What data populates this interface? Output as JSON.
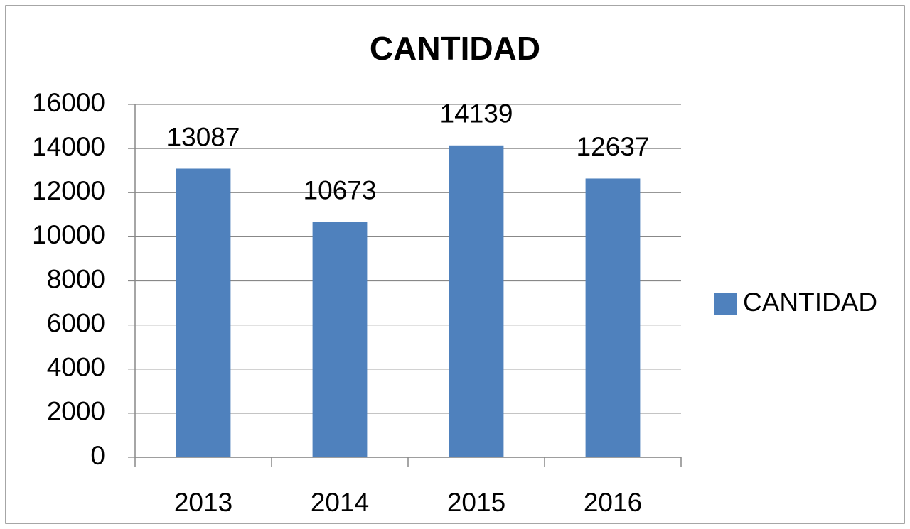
{
  "chart_data": {
    "type": "bar",
    "title": "CANTIDAD",
    "categories": [
      "2013",
      "2014",
      "2015",
      "2016"
    ],
    "series": [
      {
        "name": "CANTIDAD",
        "color": "#4f81bd",
        "values": [
          13087,
          10673,
          14139,
          12637
        ]
      }
    ],
    "ylim": [
      0,
      16000
    ],
    "yticks": [
      0,
      2000,
      4000,
      6000,
      8000,
      10000,
      12000,
      14000,
      16000
    ],
    "grid": true,
    "legend": "right",
    "data_labels": true
  }
}
